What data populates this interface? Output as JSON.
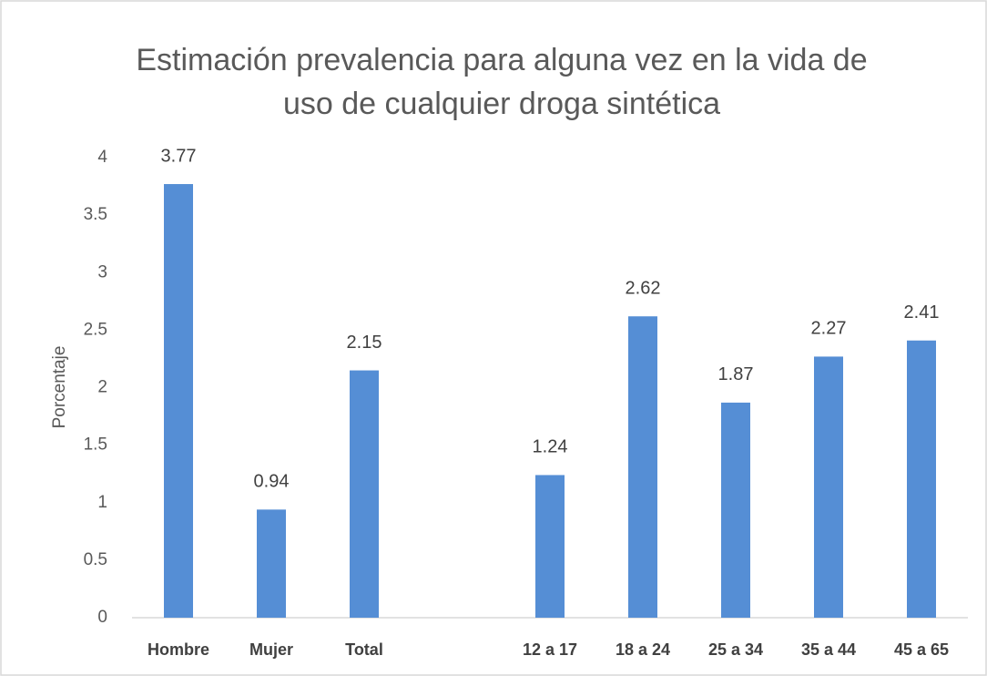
{
  "chart_data": {
    "type": "bar",
    "title": [
      "Estimación prevalencia para alguna vez en la vida de",
      "uso de cualquier droga sintética"
    ],
    "y_label": "Porcentaje",
    "categories": [
      "Hombre",
      "Mujer",
      "Total",
      null,
      "12 a 17",
      "18 a 24",
      "25 a 34",
      "35 a 44",
      "45 a 65"
    ],
    "values": [
      3.77,
      0.94,
      2.15,
      null,
      1.24,
      2.62,
      1.87,
      2.27,
      2.41
    ],
    "color": "#558ed5",
    "ylim": [
      0,
      4
    ],
    "yticks": [
      0,
      0.5,
      1,
      1.5,
      2,
      2.5,
      3,
      3.5,
      4
    ],
    "grid": false
  }
}
